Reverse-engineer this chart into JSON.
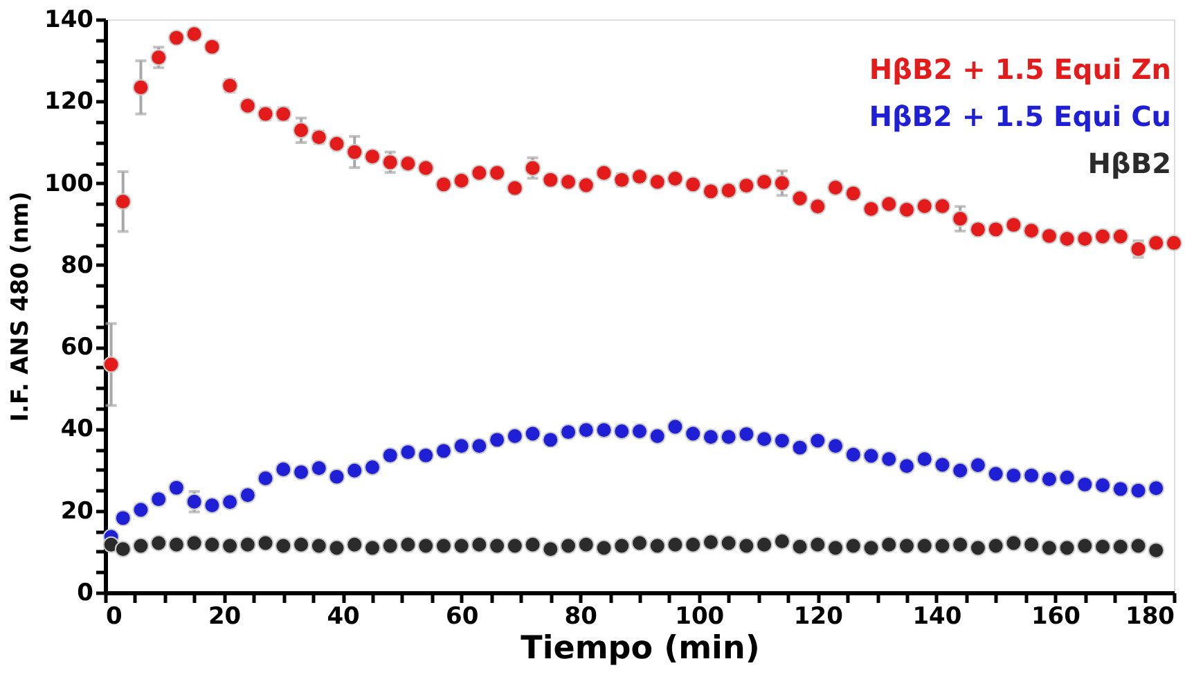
{
  "chart_data": {
    "type": "scatter",
    "xlabel": "Tiempo (min)",
    "ylabel": "I.F. ANS 480 (nm)",
    "xlim": [
      0,
      180
    ],
    "ylim": [
      0,
      140
    ],
    "xticks": [
      0,
      {
        "value": 5,
        "label": null
      },
      {
        "value": 10,
        "label": null
      },
      {
        "value": 15,
        "label": null
      },
      20,
      {
        "value": 25,
        "label": null
      },
      {
        "value": 30,
        "label": null
      },
      {
        "value": 35,
        "label": null
      },
      40,
      {
        "value": 45,
        "label": null
      },
      {
        "value": 50,
        "label": null
      },
      {
        "value": 55,
        "label": null
      },
      60,
      {
        "value": 65,
        "label": null
      },
      {
        "value": 70,
        "label": null
      },
      {
        "value": 75,
        "label": null
      },
      80,
      {
        "value": 85,
        "label": null
      },
      {
        "value": 90,
        "label": null
      },
      {
        "value": 95,
        "label": null
      },
      100,
      {
        "value": 105,
        "label": null
      },
      {
        "value": 110,
        "label": null
      },
      {
        "value": 115,
        "label": null
      },
      120,
      {
        "value": 125,
        "label": null
      },
      {
        "value": 130,
        "label": null
      },
      {
        "value": 135,
        "label": null
      },
      140,
      {
        "value": 145,
        "label": null
      },
      {
        "value": 150,
        "label": null
      },
      {
        "value": 155,
        "label": null
      },
      160,
      {
        "value": 165,
        "label": null
      },
      {
        "value": 170,
        "label": null
      },
      {
        "value": 175,
        "label": null
      },
      180
    ],
    "yticks": [
      0,
      {
        "value": 5,
        "label": null
      },
      {
        "value": 10,
        "label": null
      },
      {
        "value": 15,
        "label": null
      },
      20,
      {
        "value": 25,
        "label": null
      },
      {
        "value": 30,
        "label": null
      },
      {
        "value": 35,
        "label": null
      },
      40,
      {
        "value": 45,
        "label": null
      },
      {
        "value": 50,
        "label": null
      },
      {
        "value": 55,
        "label": null
      },
      60,
      {
        "value": 65,
        "label": null
      },
      {
        "value": 70,
        "label": null
      },
      {
        "value": 75,
        "label": null
      },
      80,
      {
        "value": 85,
        "label": null
      },
      {
        "value": 90,
        "label": null
      },
      {
        "value": 95,
        "label": null
      },
      100,
      {
        "value": 105,
        "label": null
      },
      {
        "value": 110,
        "label": null
      },
      {
        "value": 115,
        "label": null
      },
      120,
      {
        "value": 125,
        "label": null
      },
      {
        "value": 130,
        "label": null
      },
      {
        "value": 135,
        "label": null
      },
      140
    ],
    "marker": "circle",
    "legend": "top right",
    "series": [
      {
        "name": "HβB2 + 1.5 Equi Zn",
        "color": "#e31b1b",
        "x": [
          1,
          3,
          6,
          9,
          12,
          15,
          18,
          21,
          24,
          27,
          30,
          33,
          36,
          39,
          42,
          45,
          48,
          51,
          54,
          57,
          60,
          63,
          66,
          69,
          72,
          75,
          78,
          81,
          84,
          87,
          90,
          93,
          96,
          99,
          102,
          105,
          108,
          111,
          114,
          117,
          120,
          123,
          126,
          129,
          132,
          135,
          138,
          141,
          144,
          147,
          150,
          153,
          156,
          159,
          162,
          165,
          168,
          171,
          174,
          177,
          180
        ],
        "values": [
          55.7,
          95.5,
          123.4,
          130.7,
          135.5,
          136.4,
          133.3,
          123.8,
          118.9,
          116.9,
          116.9,
          112.9,
          111.2,
          109.6,
          107.6,
          106.5,
          105.1,
          104.8,
          103.7,
          99.7,
          100.6,
          102.5,
          102.5,
          98.8,
          103.7,
          100.8,
          100.3,
          99.5,
          102.5,
          100.8,
          101.6,
          100.3,
          101.1,
          99.7,
          98,
          98.2,
          99.4,
          100.3,
          100,
          96.3,
          94.3,
          98.9,
          97.5,
          93.7,
          94.9,
          93.5,
          94.4,
          94.4,
          91.3,
          88.7,
          88.7,
          89.8,
          88.4,
          87.1,
          86.4,
          86.4,
          87,
          87,
          83.9,
          85.4,
          85.4
        ],
        "errors": [
          10,
          7.3,
          6.5,
          2.5,
          1,
          1,
          1,
          1.5,
          1,
          1.5,
          1.5,
          3,
          1.5,
          1,
          3.8,
          1,
          2.5,
          1,
          1,
          1,
          1,
          1,
          1,
          1,
          2.5,
          1,
          1,
          1,
          1,
          1.5,
          1,
          1,
          1,
          1,
          1,
          1,
          1,
          1,
          3,
          1,
          1,
          1,
          1,
          1,
          1,
          1,
          1,
          1,
          3,
          1,
          1,
          1,
          1,
          1,
          1,
          1,
          1,
          1,
          2,
          1,
          1
        ]
      },
      {
        "name": "HβB2 + 1.5 Equi Cu",
        "color": "#1f1fd6",
        "x": [
          1,
          3,
          6,
          9,
          12,
          15,
          18,
          21,
          24,
          27,
          30,
          33,
          36,
          39,
          42,
          45,
          48,
          51,
          54,
          57,
          60,
          63,
          66,
          69,
          72,
          75,
          78,
          81,
          84,
          87,
          90,
          93,
          96,
          99,
          102,
          105,
          108,
          111,
          114,
          117,
          120,
          123,
          126,
          129,
          132,
          135,
          138,
          141,
          144,
          147,
          150,
          153,
          156,
          159,
          162,
          165,
          168,
          171,
          174,
          177
        ],
        "values": [
          13.6,
          18.2,
          20.2,
          22.8,
          25.6,
          22.2,
          21.3,
          22.1,
          23.8,
          27.9,
          30.1,
          29.4,
          30.4,
          28.3,
          29.8,
          30.6,
          33.5,
          34.3,
          33.5,
          34.6,
          35.8,
          35.8,
          37.3,
          38.2,
          38.8,
          37.3,
          39.2,
          39.7,
          39.7,
          39.4,
          39.4,
          38.2,
          40.5,
          38.8,
          38,
          38,
          38.7,
          37.5,
          37.1,
          35.4,
          37.1,
          35.8,
          33.7,
          33.4,
          32.6,
          30.9,
          32.6,
          31.2,
          29.8,
          31.1,
          29,
          28.6,
          28.6,
          27.7,
          28.1,
          26.4,
          26.2,
          25.3,
          24.9,
          25.5
        ],
        "errors": [
          1,
          1,
          1,
          1,
          1,
          2.5,
          1,
          1,
          1,
          1,
          1,
          1,
          1,
          1,
          1,
          1,
          1,
          1,
          1,
          1,
          1,
          1,
          1,
          1,
          1,
          1,
          1,
          1,
          1,
          1,
          1,
          1,
          1,
          1,
          1,
          1,
          1,
          1,
          1,
          1,
          1,
          1,
          1,
          1,
          1,
          1,
          1,
          1,
          1,
          1,
          1,
          1,
          1,
          1,
          1,
          1,
          1,
          1,
          1,
          1
        ]
      },
      {
        "name": "HβB2",
        "color": "#2b2b2b",
        "x": [
          1,
          3,
          6,
          9,
          12,
          15,
          18,
          21,
          24,
          27,
          30,
          33,
          36,
          39,
          42,
          45,
          48,
          51,
          54,
          57,
          60,
          63,
          66,
          69,
          72,
          75,
          78,
          81,
          84,
          87,
          90,
          93,
          96,
          99,
          102,
          105,
          108,
          111,
          114,
          117,
          120,
          123,
          126,
          129,
          132,
          135,
          138,
          141,
          144,
          147,
          150,
          153,
          156,
          159,
          162,
          165,
          168,
          171,
          174,
          177
        ],
        "values": [
          11.7,
          10.6,
          11.4,
          12.1,
          11.7,
          12.1,
          11.7,
          11.4,
          11.7,
          12.1,
          11.4,
          11.7,
          11.4,
          10.9,
          11.7,
          10.9,
          11.4,
          11.7,
          11.4,
          11.4,
          11.4,
          11.7,
          11.4,
          11.4,
          11.7,
          10.6,
          11.4,
          11.7,
          10.9,
          11.4,
          12.1,
          11.4,
          11.7,
          11.7,
          12.3,
          12.1,
          11.4,
          11.7,
          12.5,
          11.2,
          11.7,
          10.9,
          11.4,
          10.9,
          11.7,
          11.4,
          11.4,
          11.4,
          11.7,
          10.9,
          11.4,
          12.1,
          11.7,
          10.9,
          10.9,
          11.4,
          11.2,
          11.2,
          11.4,
          10.3
        ]
      }
    ]
  }
}
